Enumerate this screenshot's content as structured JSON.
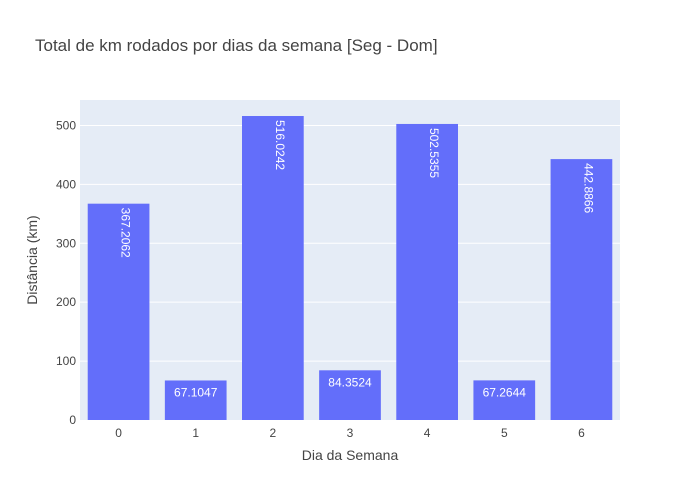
{
  "chart_data": {
    "type": "bar",
    "title": "Total de km rodados por dias da semana [Seg - Dom]",
    "xlabel": "Dia da Semana",
    "ylabel": "Distância (km)",
    "categories": [
      "0",
      "1",
      "2",
      "3",
      "4",
      "5",
      "6"
    ],
    "values": [
      367.2062,
      67.1047,
      516.0242,
      84.3524,
      502.5355,
      67.2644,
      442.8866
    ],
    "value_labels": [
      "367.2062",
      "67.1047",
      "516.0242",
      "84.3524",
      "502.5355",
      "67.2644",
      "442.8866"
    ],
    "ylim": [
      0,
      543.2
    ],
    "yticks": [
      0,
      100,
      200,
      300,
      400,
      500
    ],
    "grid": true,
    "legend": "none",
    "colors": {
      "bar": "#636efa",
      "plot_background": "#e5ecf6",
      "grid": "#ffffff",
      "text": "#444444"
    }
  }
}
